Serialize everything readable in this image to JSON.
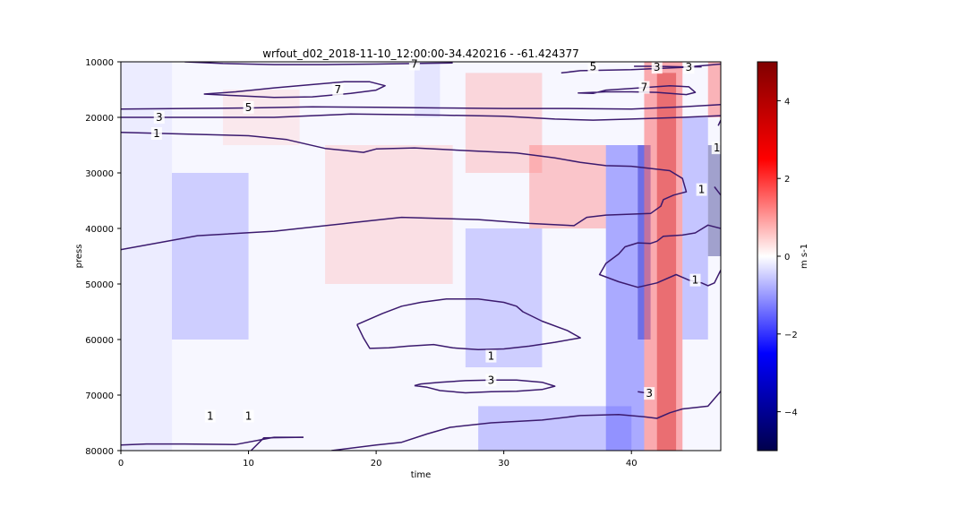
{
  "chart_data": {
    "type": "heatmap",
    "title": "wrfout_d02_2018-11-10_12:00:00-34.420216 - -61.424377",
    "xlabel": "time",
    "ylabel": "press",
    "xlim": [
      0,
      47
    ],
    "ylim": [
      80000,
      10000
    ],
    "y_axis_inverted": true,
    "xticks": [
      0,
      10,
      20,
      30,
      40
    ],
    "yticks": [
      10000,
      20000,
      30000,
      40000,
      50000,
      60000,
      70000,
      80000
    ],
    "grid": false,
    "colorbar": {
      "label": "m s-1",
      "range": [
        -5,
        5
      ],
      "ticks": [
        4,
        2,
        0,
        -2,
        -4
      ],
      "tick_labels": [
        "4",
        "2",
        "0",
        "−2",
        "−4"
      ],
      "colormap": "seismic",
      "colors": {
        "min": "#00004c",
        "low": "#0000ff",
        "mid": "#ffffff",
        "high": "#ff0000",
        "max": "#800000"
      }
    },
    "heatmap_bands": [
      {
        "x": [
          0,
          4
        ],
        "y": [
          10000,
          80000
        ],
        "value": -0.08
      },
      {
        "x": [
          4,
          10
        ],
        "y": [
          30000,
          60000
        ],
        "value": -0.25
      },
      {
        "x": [
          8,
          14
        ],
        "y": [
          15000,
          25000
        ],
        "value": 0.1
      },
      {
        "x": [
          16,
          26
        ],
        "y": [
          25000,
          50000
        ],
        "value": 0.15
      },
      {
        "x": [
          23,
          25
        ],
        "y": [
          10000,
          20000
        ],
        "value": -0.12
      },
      {
        "x": [
          27,
          33
        ],
        "y": [
          12000,
          30000
        ],
        "value": 0.2
      },
      {
        "x": [
          27,
          33
        ],
        "y": [
          40000,
          65000
        ],
        "value": -0.25
      },
      {
        "x": [
          32,
          38
        ],
        "y": [
          25000,
          40000
        ],
        "value": 0.3
      },
      {
        "x": [
          38,
          41
        ],
        "y": [
          25000,
          80000
        ],
        "value": -0.45
      },
      {
        "x": [
          40.5,
          41.5
        ],
        "y": [
          25000,
          60000
        ],
        "value": -0.7
      },
      {
        "x": [
          41,
          44
        ],
        "y": [
          10000,
          80000
        ],
        "value": 0.45
      },
      {
        "x": [
          42,
          43.5
        ],
        "y": [
          12000,
          80000
        ],
        "value": 0.7
      },
      {
        "x": [
          44,
          46
        ],
        "y": [
          20000,
          60000
        ],
        "value": -0.3
      },
      {
        "x": [
          46,
          47
        ],
        "y": [
          25000,
          45000
        ],
        "value": -0.9
      },
      {
        "x": [
          46,
          47
        ],
        "y": [
          10000,
          20000
        ],
        "value": 0.4
      },
      {
        "x": [
          28,
          40
        ],
        "y": [
          72000,
          80000
        ],
        "value": -0.3
      }
    ],
    "contours": [
      {
        "level": 1,
        "points": [
          [
            0,
            79000
          ],
          [
            2,
            78800
          ],
          [
            5,
            78800
          ],
          [
            9,
            78900
          ],
          [
            12,
            77600
          ],
          [
            14.3,
            77600
          ]
        ]
      },
      {
        "level": 1,
        "points": [
          [
            10.2,
            80000
          ],
          [
            11.2,
            77700
          ],
          [
            14.3,
            77600
          ]
        ]
      },
      {
        "level": 1,
        "points": [
          [
            16.5,
            80000
          ],
          [
            20,
            79000
          ],
          [
            22,
            78500
          ],
          [
            24,
            77000
          ],
          [
            25.8,
            75800
          ],
          [
            29,
            75000
          ],
          [
            33,
            74500
          ],
          [
            36,
            73700
          ],
          [
            39,
            73500
          ],
          [
            41,
            73900
          ],
          [
            42,
            74200
          ],
          [
            43,
            73200
          ],
          [
            44,
            72500
          ],
          [
            46,
            72000
          ],
          [
            47,
            69300
          ]
        ]
      },
      {
        "level": 1,
        "points": [
          [
            0,
            22700
          ],
          [
            5,
            23000
          ],
          [
            10,
            23300
          ],
          [
            13,
            24000
          ],
          [
            16,
            25600
          ],
          [
            19,
            26300
          ],
          [
            20,
            25700
          ],
          [
            23,
            25500
          ],
          [
            28,
            26100
          ],
          [
            31,
            26400
          ],
          [
            34,
            27300
          ],
          [
            36,
            28100
          ],
          [
            38,
            28700
          ],
          [
            40,
            28800
          ],
          [
            43,
            29600
          ],
          [
            44,
            31000
          ],
          [
            44.3,
            33400
          ],
          [
            43.3,
            34000
          ],
          [
            42.5,
            34800
          ],
          [
            42.3,
            36000
          ],
          [
            41.5,
            37300
          ],
          [
            38,
            37600
          ],
          [
            36.5,
            38000
          ],
          [
            35.5,
            39500
          ],
          [
            32,
            39100
          ],
          [
            28,
            38400
          ],
          [
            22,
            38000
          ],
          [
            18,
            39000
          ],
          [
            12,
            40500
          ],
          [
            6,
            41300
          ],
          [
            0,
            43800
          ]
        ]
      },
      {
        "level": 1,
        "points": [
          [
            46.8,
            21500
          ],
          [
            47,
            20500
          ]
        ]
      },
      {
        "level": 1,
        "points": [
          [
            46.5,
            32500
          ],
          [
            47,
            34000
          ]
        ]
      },
      {
        "level": 1,
        "points": [
          [
            47,
            47500
          ],
          [
            46.5,
            49800
          ],
          [
            46,
            50300
          ],
          [
            45.5,
            49800
          ],
          [
            44.5,
            49300
          ],
          [
            43.5,
            48300
          ],
          [
            42,
            49800
          ],
          [
            40.5,
            50600
          ],
          [
            39,
            49600
          ],
          [
            37.5,
            48300
          ],
          [
            38,
            46300
          ],
          [
            39,
            44600
          ],
          [
            39.5,
            43300
          ],
          [
            40.5,
            42600
          ],
          [
            41.5,
            42700
          ],
          [
            42,
            42300
          ],
          [
            42.5,
            41400
          ],
          [
            44,
            41200
          ],
          [
            45,
            40800
          ],
          [
            46,
            39400
          ],
          [
            47,
            40000
          ]
        ]
      },
      {
        "level": 1,
        "points": [
          [
            18.5,
            57300
          ],
          [
            20.5,
            55300
          ],
          [
            22,
            54000
          ],
          [
            23.5,
            53300
          ],
          [
            25.5,
            52700
          ],
          [
            28,
            52700
          ],
          [
            30,
            53300
          ],
          [
            31,
            54000
          ],
          [
            31.5,
            55000
          ],
          [
            33,
            56700
          ],
          [
            35,
            58400
          ],
          [
            36,
            59700
          ],
          [
            34,
            60500
          ],
          [
            32,
            61200
          ],
          [
            30,
            61700
          ],
          [
            28,
            61800
          ],
          [
            26,
            61500
          ],
          [
            24.5,
            60900
          ],
          [
            22.5,
            61200
          ],
          [
            21,
            61500
          ],
          [
            19.5,
            61600
          ],
          [
            19,
            59700
          ],
          [
            18.5,
            57300
          ]
        ]
      },
      {
        "level": 3,
        "points": [
          [
            23,
            68300
          ],
          [
            24,
            68600
          ],
          [
            25,
            69200
          ],
          [
            27,
            69600
          ],
          [
            29,
            69400
          ],
          [
            31,
            69300
          ],
          [
            33,
            69000
          ],
          [
            34,
            68400
          ],
          [
            33,
            67700
          ],
          [
            31,
            67300
          ],
          [
            29,
            67300
          ],
          [
            27,
            67400
          ],
          [
            25,
            67700
          ],
          [
            23.5,
            68000
          ],
          [
            23,
            68300
          ]
        ]
      },
      {
        "level": 3,
        "points": [
          [
            0,
            20000
          ],
          [
            8,
            20000
          ],
          [
            12,
            20000
          ],
          [
            18,
            19400
          ],
          [
            25,
            19600
          ],
          [
            30,
            19800
          ],
          [
            34,
            20300
          ],
          [
            37,
            20500
          ],
          [
            40,
            20300
          ],
          [
            44,
            20000
          ],
          [
            47,
            19700
          ]
        ]
      },
      {
        "level": 3,
        "points": [
          [
            40.5,
            69400
          ],
          [
            41.1,
            69600
          ]
        ]
      },
      {
        "level": 5,
        "points": [
          [
            0,
            18500
          ],
          [
            5,
            18400
          ],
          [
            10,
            18300
          ],
          [
            15,
            18100
          ],
          [
            20,
            18200
          ],
          [
            25,
            18300
          ],
          [
            30,
            18400
          ],
          [
            35,
            18400
          ],
          [
            40,
            18500
          ],
          [
            44,
            18100
          ],
          [
            47,
            17700
          ]
        ]
      },
      {
        "level": 5,
        "points": [
          [
            34.5,
            12000
          ],
          [
            36,
            11600
          ],
          [
            40,
            11400
          ],
          [
            44,
            11000
          ],
          [
            47,
            10400
          ]
        ]
      },
      {
        "level": 7,
        "points": [
          [
            6.5,
            15800
          ],
          [
            9,
            15400
          ],
          [
            12,
            14700
          ],
          [
            15,
            14100
          ],
          [
            17.5,
            13600
          ],
          [
            19.5,
            13600
          ],
          [
            20.7,
            14300
          ],
          [
            20,
            15100
          ],
          [
            18,
            15700
          ],
          [
            15,
            16300
          ],
          [
            12,
            16400
          ],
          [
            9,
            16100
          ],
          [
            6.5,
            15800
          ]
        ]
      },
      {
        "level": 7,
        "points": [
          [
            5,
            10000
          ],
          [
            8,
            10300
          ],
          [
            12,
            10500
          ],
          [
            16,
            10500
          ],
          [
            20,
            10400
          ],
          [
            26,
            10200
          ]
        ]
      },
      {
        "level": 7,
        "points": [
          [
            35.8,
            15600
          ],
          [
            37,
            15700
          ],
          [
            38,
            15100
          ],
          [
            40,
            14800
          ],
          [
            43,
            14300
          ],
          [
            44.5,
            14500
          ],
          [
            45,
            15500
          ],
          [
            44.3,
            15900
          ],
          [
            42,
            15500
          ],
          [
            40,
            15400
          ],
          [
            38,
            15400
          ],
          [
            36,
            15600
          ]
        ]
      },
      {
        "level": 9,
        "points": [
          [
            40.2,
            10800
          ],
          [
            42,
            10800
          ],
          [
            44,
            10900
          ],
          [
            45.5,
            10900
          ]
        ]
      }
    ],
    "contour_labels": [
      {
        "text": "1",
        "x": 2.8,
        "y": 22900
      },
      {
        "text": "3",
        "x": 3,
        "y": 20000
      },
      {
        "text": "5",
        "x": 10,
        "y": 18200
      },
      {
        "text": "7",
        "x": 17,
        "y": 15000
      },
      {
        "text": "7",
        "x": 23,
        "y": 10400
      },
      {
        "text": "5",
        "x": 37,
        "y": 10900
      },
      {
        "text": "3",
        "x": 42,
        "y": 11000
      },
      {
        "text": "3",
        "x": 44.5,
        "y": 11000
      },
      {
        "text": "7",
        "x": 41,
        "y": 14600
      },
      {
        "text": "1",
        "x": 46.7,
        "y": 25500
      },
      {
        "text": "1",
        "x": 45.5,
        "y": 33000
      },
      {
        "text": "1",
        "x": 45,
        "y": 49300
      },
      {
        "text": "1",
        "x": 29,
        "y": 63000
      },
      {
        "text": "3",
        "x": 29,
        "y": 67300
      },
      {
        "text": "3",
        "x": 41.4,
        "y": 69700
      },
      {
        "text": "1",
        "x": 7,
        "y": 73800
      },
      {
        "text": "1",
        "x": 10,
        "y": 73800
      }
    ],
    "contour_color": "#3b1a6e"
  }
}
